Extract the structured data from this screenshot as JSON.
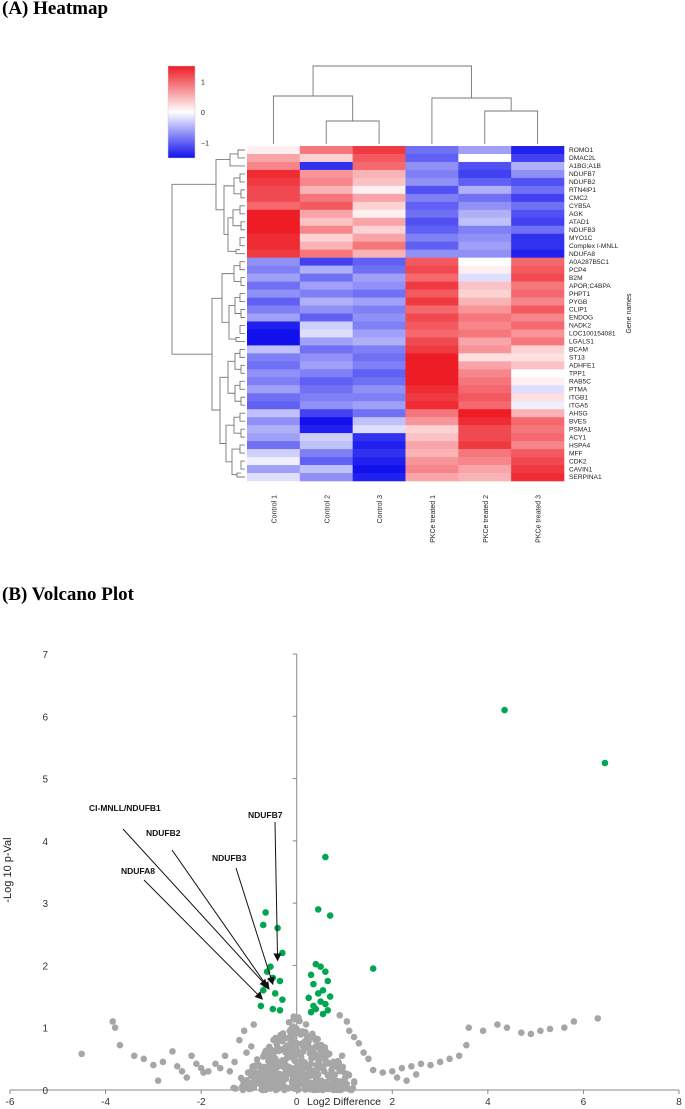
{
  "headings": {
    "heatmap": "(A) Heatmap",
    "volcano": "(B) Volcano Plot"
  },
  "colors": {
    "high": "#ee1c25",
    "mid": "#ffffff",
    "low": "#1111ee",
    "point_gray": "#a6a6a6",
    "point_green": "#00a650"
  },
  "chart_data": [
    {
      "type": "heatmap",
      "title": "(A) Heatmap",
      "columns": [
        "Control 1",
        "Control 2",
        "Control 3",
        "PKCe treated 1",
        "PKCe treated 2",
        "PKCe treated 3"
      ],
      "rows": [
        "ROMO1",
        "DMAC2L",
        "A1BG;A1B",
        "NDUFB7",
        "NDUFB2",
        "RTN4IP1",
        "CMC2",
        "CYB5A",
        "AGK",
        "ATAD1",
        "NDUFB3",
        "MYO1C",
        "Complex I-MNLL",
        "NDUFA8",
        "A0A287B5C1",
        "PCP4",
        "B2M",
        "APOR;C4BPA",
        "PHPT1",
        "PYGB",
        "CLIP1",
        "ENDOG",
        "NADK2",
        "LOC100154081",
        "LGALS1",
        "BCAM",
        "ST13",
        "ADHFE1",
        "TPP1",
        "RAB5C",
        "PTMA",
        "ITGB1",
        "ITGA5",
        "AHSG",
        "BVES",
        "PSMA1",
        "ACY1",
        "HSPA4",
        "MFF",
        "CDK2",
        "CAVIN1",
        "SERPINA1"
      ],
      "ylabel": "Gene names",
      "colorbar": {
        "ticks": [
          1,
          0,
          -1
        ],
        "tick_labels": [
          "1",
          "0",
          "−1"
        ],
        "range": [
          -1.5,
          1.5
        ]
      },
      "values": [
        [
          0.1,
          0.9,
          1.3,
          -0.9,
          -0.6,
          -1.4
        ],
        [
          0.6,
          0.3,
          1.1,
          -1.0,
          0.0,
          -1.2
        ],
        [
          0.8,
          -1.3,
          1.0,
          -0.7,
          -1.1,
          -0.5
        ],
        [
          1.4,
          0.7,
          0.5,
          -0.8,
          -1.2,
          -0.7
        ],
        [
          1.3,
          0.8,
          0.4,
          -0.7,
          -1.0,
          -1.1
        ],
        [
          1.2,
          0.5,
          0.1,
          -1.1,
          -0.5,
          -0.9
        ],
        [
          1.2,
          0.9,
          0.6,
          -0.8,
          -0.9,
          -1.2
        ],
        [
          1.0,
          1.1,
          0.3,
          -1.0,
          -0.7,
          -0.9
        ],
        [
          1.6,
          0.6,
          0.1,
          -0.9,
          -0.5,
          -1.1
        ],
        [
          1.5,
          0.4,
          0.6,
          -1.1,
          -0.4,
          -1.2
        ],
        [
          1.5,
          0.8,
          0.3,
          -1.0,
          -0.8,
          -0.9
        ],
        [
          1.4,
          0.3,
          0.6,
          -0.8,
          -0.7,
          -1.3
        ],
        [
          1.4,
          0.5,
          0.9,
          -1.0,
          -0.6,
          -1.3
        ],
        [
          1.3,
          0.9,
          0.5,
          -0.7,
          -0.7,
          -1.4
        ],
        [
          -0.7,
          -1.2,
          -1.0,
          1.1,
          0.0,
          1.0
        ],
        [
          -0.8,
          -0.5,
          -0.9,
          1.2,
          0.1,
          1.1
        ],
        [
          -0.6,
          -0.9,
          -0.6,
          1.0,
          -0.2,
          1.2
        ],
        [
          -0.9,
          -0.6,
          -0.7,
          1.3,
          0.4,
          0.9
        ],
        [
          -0.7,
          -0.8,
          -0.9,
          1.1,
          0.3,
          1.0
        ],
        [
          -1.0,
          -0.5,
          -0.6,
          1.3,
          0.5,
          0.8
        ],
        [
          -0.8,
          -0.7,
          -0.8,
          1.0,
          0.7,
          1.1
        ],
        [
          -0.6,
          -1.0,
          -0.7,
          1.2,
          0.9,
          0.8
        ],
        [
          -1.4,
          -0.3,
          -0.8,
          1.1,
          0.8,
          1.0
        ],
        [
          -1.5,
          -0.2,
          -0.6,
          1.0,
          0.9,
          0.7
        ],
        [
          -1.5,
          -0.6,
          -0.5,
          1.2,
          0.6,
          0.9
        ],
        [
          -0.4,
          -0.9,
          -0.8,
          1.3,
          0.7,
          0.3
        ],
        [
          -0.8,
          -0.7,
          -0.9,
          1.6,
          0.2,
          0.2
        ],
        [
          -0.9,
          -0.6,
          -0.8,
          1.5,
          0.6,
          0.4
        ],
        [
          -0.7,
          -0.8,
          -1.0,
          1.6,
          0.8,
          0.0
        ],
        [
          -0.8,
          -1.0,
          -0.9,
          1.5,
          0.9,
          0.1
        ],
        [
          -0.6,
          -0.9,
          -0.7,
          1.4,
          1.0,
          -0.2
        ],
        [
          -0.9,
          -0.8,
          -0.8,
          1.3,
          1.1,
          0.2
        ],
        [
          -1.0,
          -0.7,
          -0.6,
          1.4,
          1.0,
          -0.1
        ],
        [
          -0.4,
          -1.2,
          -0.9,
          0.9,
          1.6,
          0.5
        ],
        [
          -0.7,
          -1.6,
          -0.4,
          0.7,
          1.4,
          1.0
        ],
        [
          -0.5,
          -1.4,
          -0.2,
          0.3,
          1.2,
          0.9
        ],
        [
          -0.6,
          -0.3,
          -1.3,
          0.4,
          1.2,
          1.0
        ],
        [
          -0.9,
          -0.4,
          -1.4,
          0.6,
          1.3,
          0.8
        ],
        [
          -0.3,
          -0.8,
          -1.3,
          0.5,
          0.9,
          1.1
        ],
        [
          -0.1,
          -1.0,
          -1.4,
          0.7,
          0.8,
          1.2
        ],
        [
          -0.6,
          -0.4,
          -1.5,
          0.8,
          0.6,
          1.3
        ],
        [
          -0.2,
          -0.7,
          -1.4,
          0.6,
          0.5,
          1.4
        ]
      ]
    },
    {
      "type": "scatter",
      "title": "(B) Volcano Plot",
      "xlabel": "Log2 Difference",
      "ylabel": "-Log 10 p-Val",
      "xlim": [
        -6,
        8
      ],
      "ylim": [
        0,
        7
      ],
      "x_ticks": [
        -6,
        -4,
        -2,
        0,
        2,
        4,
        6,
        8
      ],
      "y_ticks": [
        0,
        1,
        2,
        3,
        4,
        5,
        6,
        7
      ],
      "annotations": [
        {
          "label": "CI-MNLL/NDUFB1",
          "point": [
            -0.62,
            1.66
          ]
        },
        {
          "label": "NDUFB2",
          "point": [
            -0.58,
            1.62
          ]
        },
        {
          "label": "NDUFA8",
          "point": [
            -0.72,
            1.46
          ]
        },
        {
          "label": "NDUFB3",
          "point": [
            -0.5,
            1.7
          ]
        },
        {
          "label": "NDUFB7",
          "point": [
            -0.4,
            2.08
          ]
        }
      ],
      "significant_points": [
        [
          4.35,
          6.1
        ],
        [
          6.45,
          5.25
        ],
        [
          0.6,
          3.74
        ],
        [
          0.45,
          2.9
        ],
        [
          0.7,
          2.8
        ],
        [
          -0.65,
          2.85
        ],
        [
          -0.7,
          2.65
        ],
        [
          -0.4,
          2.6
        ],
        [
          -0.3,
          2.2
        ],
        [
          -0.55,
          1.98
        ],
        [
          -0.62,
          1.9
        ],
        [
          -0.5,
          1.8
        ],
        [
          -0.35,
          1.75
        ],
        [
          -0.7,
          1.6
        ],
        [
          -0.45,
          1.55
        ],
        [
          -0.3,
          1.45
        ],
        [
          -0.75,
          1.35
        ],
        [
          -0.5,
          1.3
        ],
        [
          -0.35,
          1.28
        ],
        [
          1.6,
          1.95
        ],
        [
          0.4,
          2.02
        ],
        [
          0.5,
          1.98
        ],
        [
          0.6,
          1.9
        ],
        [
          0.3,
          1.85
        ],
        [
          0.65,
          1.75
        ],
        [
          0.35,
          1.7
        ],
        [
          0.55,
          1.6
        ],
        [
          0.45,
          1.55
        ],
        [
          0.7,
          1.5
        ],
        [
          0.25,
          1.48
        ],
        [
          0.5,
          1.42
        ],
        [
          0.6,
          1.38
        ],
        [
          0.35,
          1.35
        ],
        [
          0.4,
          1.3
        ],
        [
          0.65,
          1.28
        ],
        [
          0.3,
          1.25
        ],
        [
          0.55,
          1.22
        ]
      ],
      "nonsignificant_points": [
        [
          -4.5,
          0.58
        ],
        [
          -3.85,
          1.1
        ],
        [
          -3.8,
          1.0
        ],
        [
          -3.7,
          0.72
        ],
        [
          -3.4,
          0.55
        ],
        [
          -3.2,
          0.5
        ],
        [
          -3.0,
          0.4
        ],
        [
          -2.8,
          0.45
        ],
        [
          -2.6,
          0.62
        ],
        [
          -2.5,
          0.38
        ],
        [
          -2.4,
          0.3
        ],
        [
          -2.2,
          0.55
        ],
        [
          -2.1,
          0.42
        ],
        [
          -2.0,
          0.35
        ],
        [
          -1.95,
          0.28
        ],
        [
          -1.85,
          0.3
        ],
        [
          -1.7,
          0.42
        ],
        [
          -1.6,
          0.35
        ],
        [
          -1.5,
          0.55
        ],
        [
          -1.4,
          0.3
        ],
        [
          -1.3,
          0.45
        ],
        [
          -1.2,
          0.8
        ],
        [
          -1.1,
          0.95
        ],
        [
          -1.05,
          0.6
        ],
        [
          -0.95,
          0.7
        ],
        [
          -0.9,
          1.05
        ],
        [
          -0.85,
          0.4
        ],
        [
          6.3,
          1.15
        ],
        [
          5.8,
          1.1
        ],
        [
          5.6,
          1.0
        ],
        [
          5.3,
          0.98
        ],
        [
          5.1,
          0.95
        ],
        [
          4.9,
          0.9
        ],
        [
          4.7,
          0.92
        ],
        [
          4.4,
          1.0
        ],
        [
          4.2,
          1.05
        ],
        [
          3.9,
          0.95
        ],
        [
          3.6,
          1.0
        ],
        [
          3.55,
          0.72
        ],
        [
          3.4,
          0.55
        ],
        [
          3.2,
          0.5
        ],
        [
          3.0,
          0.45
        ],
        [
          2.8,
          0.4
        ],
        [
          2.6,
          0.42
        ],
        [
          2.4,
          0.38
        ],
        [
          2.2,
          0.35
        ],
        [
          2.0,
          0.3
        ],
        [
          1.8,
          0.28
        ],
        [
          1.6,
          0.32
        ],
        [
          1.5,
          0.5
        ],
        [
          1.4,
          0.6
        ],
        [
          1.3,
          0.75
        ],
        [
          1.2,
          0.85
        ],
        [
          1.1,
          0.95
        ],
        [
          1.05,
          1.1
        ],
        [
          0.95,
          0.55
        ],
        [
          0.9,
          1.2
        ],
        [
          2.1,
          0.2
        ],
        [
          2.3,
          0.15
        ],
        [
          2.5,
          0.25
        ],
        [
          1.0,
          0.15
        ],
        [
          -1.0,
          0.12
        ],
        [
          -2.3,
          0.2
        ],
        [
          -2.9,
          0.15
        ]
      ],
      "cluster_note_count": 0
    }
  ],
  "volcano_labels": {
    "ci_mnll": "CI-MNLL/NDUFB1",
    "ndufb2": "NDUFB2",
    "ndufa8": "NDUFA8",
    "ndufb3": "NDUFB3",
    "ndufb7": "NDUFB7"
  }
}
